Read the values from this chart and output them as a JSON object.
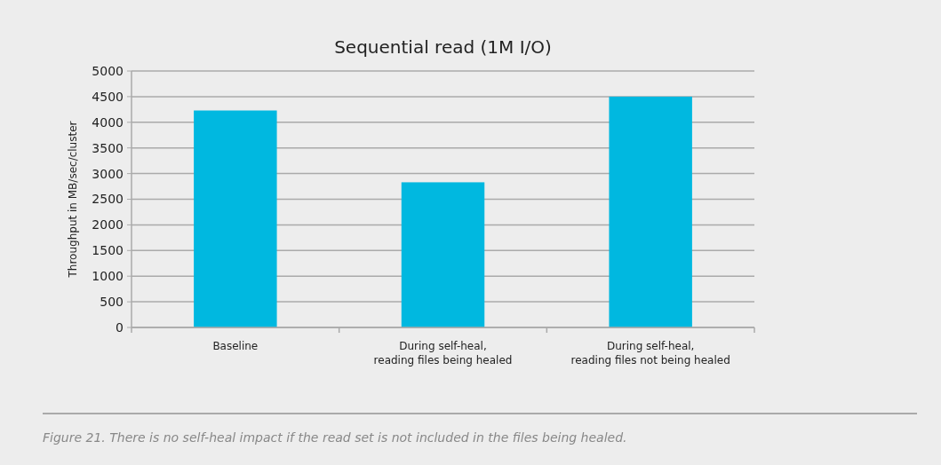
{
  "chart_data": {
    "type": "bar",
    "title": "Sequential read (1M I/O)",
    "ylabel": "Throughput in MB/sec/cluster",
    "categories": [
      "Baseline",
      "During self-heal,\nreading files being healed",
      "During self-heal,\nreading files not being healed"
    ],
    "series": [
      {
        "color": "#00b8e0",
        "values": [
          4230,
          2830,
          4500
        ]
      }
    ],
    "ylim": [
      0,
      5000
    ],
    "yticks": [
      0,
      500,
      1000,
      1500,
      2000,
      2500,
      3000,
      3500,
      4000,
      4500,
      5000
    ],
    "grid": "y",
    "annotations": [
      "Figure 21. There is no self-heal impact if the read set is not included in the files being healed."
    ]
  }
}
